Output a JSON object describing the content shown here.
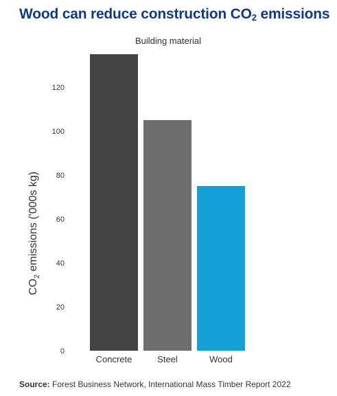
{
  "title": {
    "prefix": "Wood can reduce construction CO",
    "subscript": "2",
    "suffix": " emissions"
  },
  "source": {
    "label": "Source:",
    "text": " Forest Business Network, International Mass Timber Report 2022"
  },
  "chart_data": {
    "type": "bar",
    "title": "Wood can reduce construction CO₂ emissions",
    "xlabel": "Building material",
    "ylabel": "CO₂ emissions ('000s kg)",
    "categories": [
      "Concrete",
      "Steel",
      "Wood"
    ],
    "values": [
      135,
      105,
      75
    ],
    "colors": [
      "#444444",
      "#6e6e6e",
      "#16a0d8"
    ],
    "ylim": [
      0,
      135
    ],
    "yticks": [
      0,
      20,
      40,
      60,
      80,
      100,
      120
    ],
    "grid": false,
    "legend": "none"
  }
}
